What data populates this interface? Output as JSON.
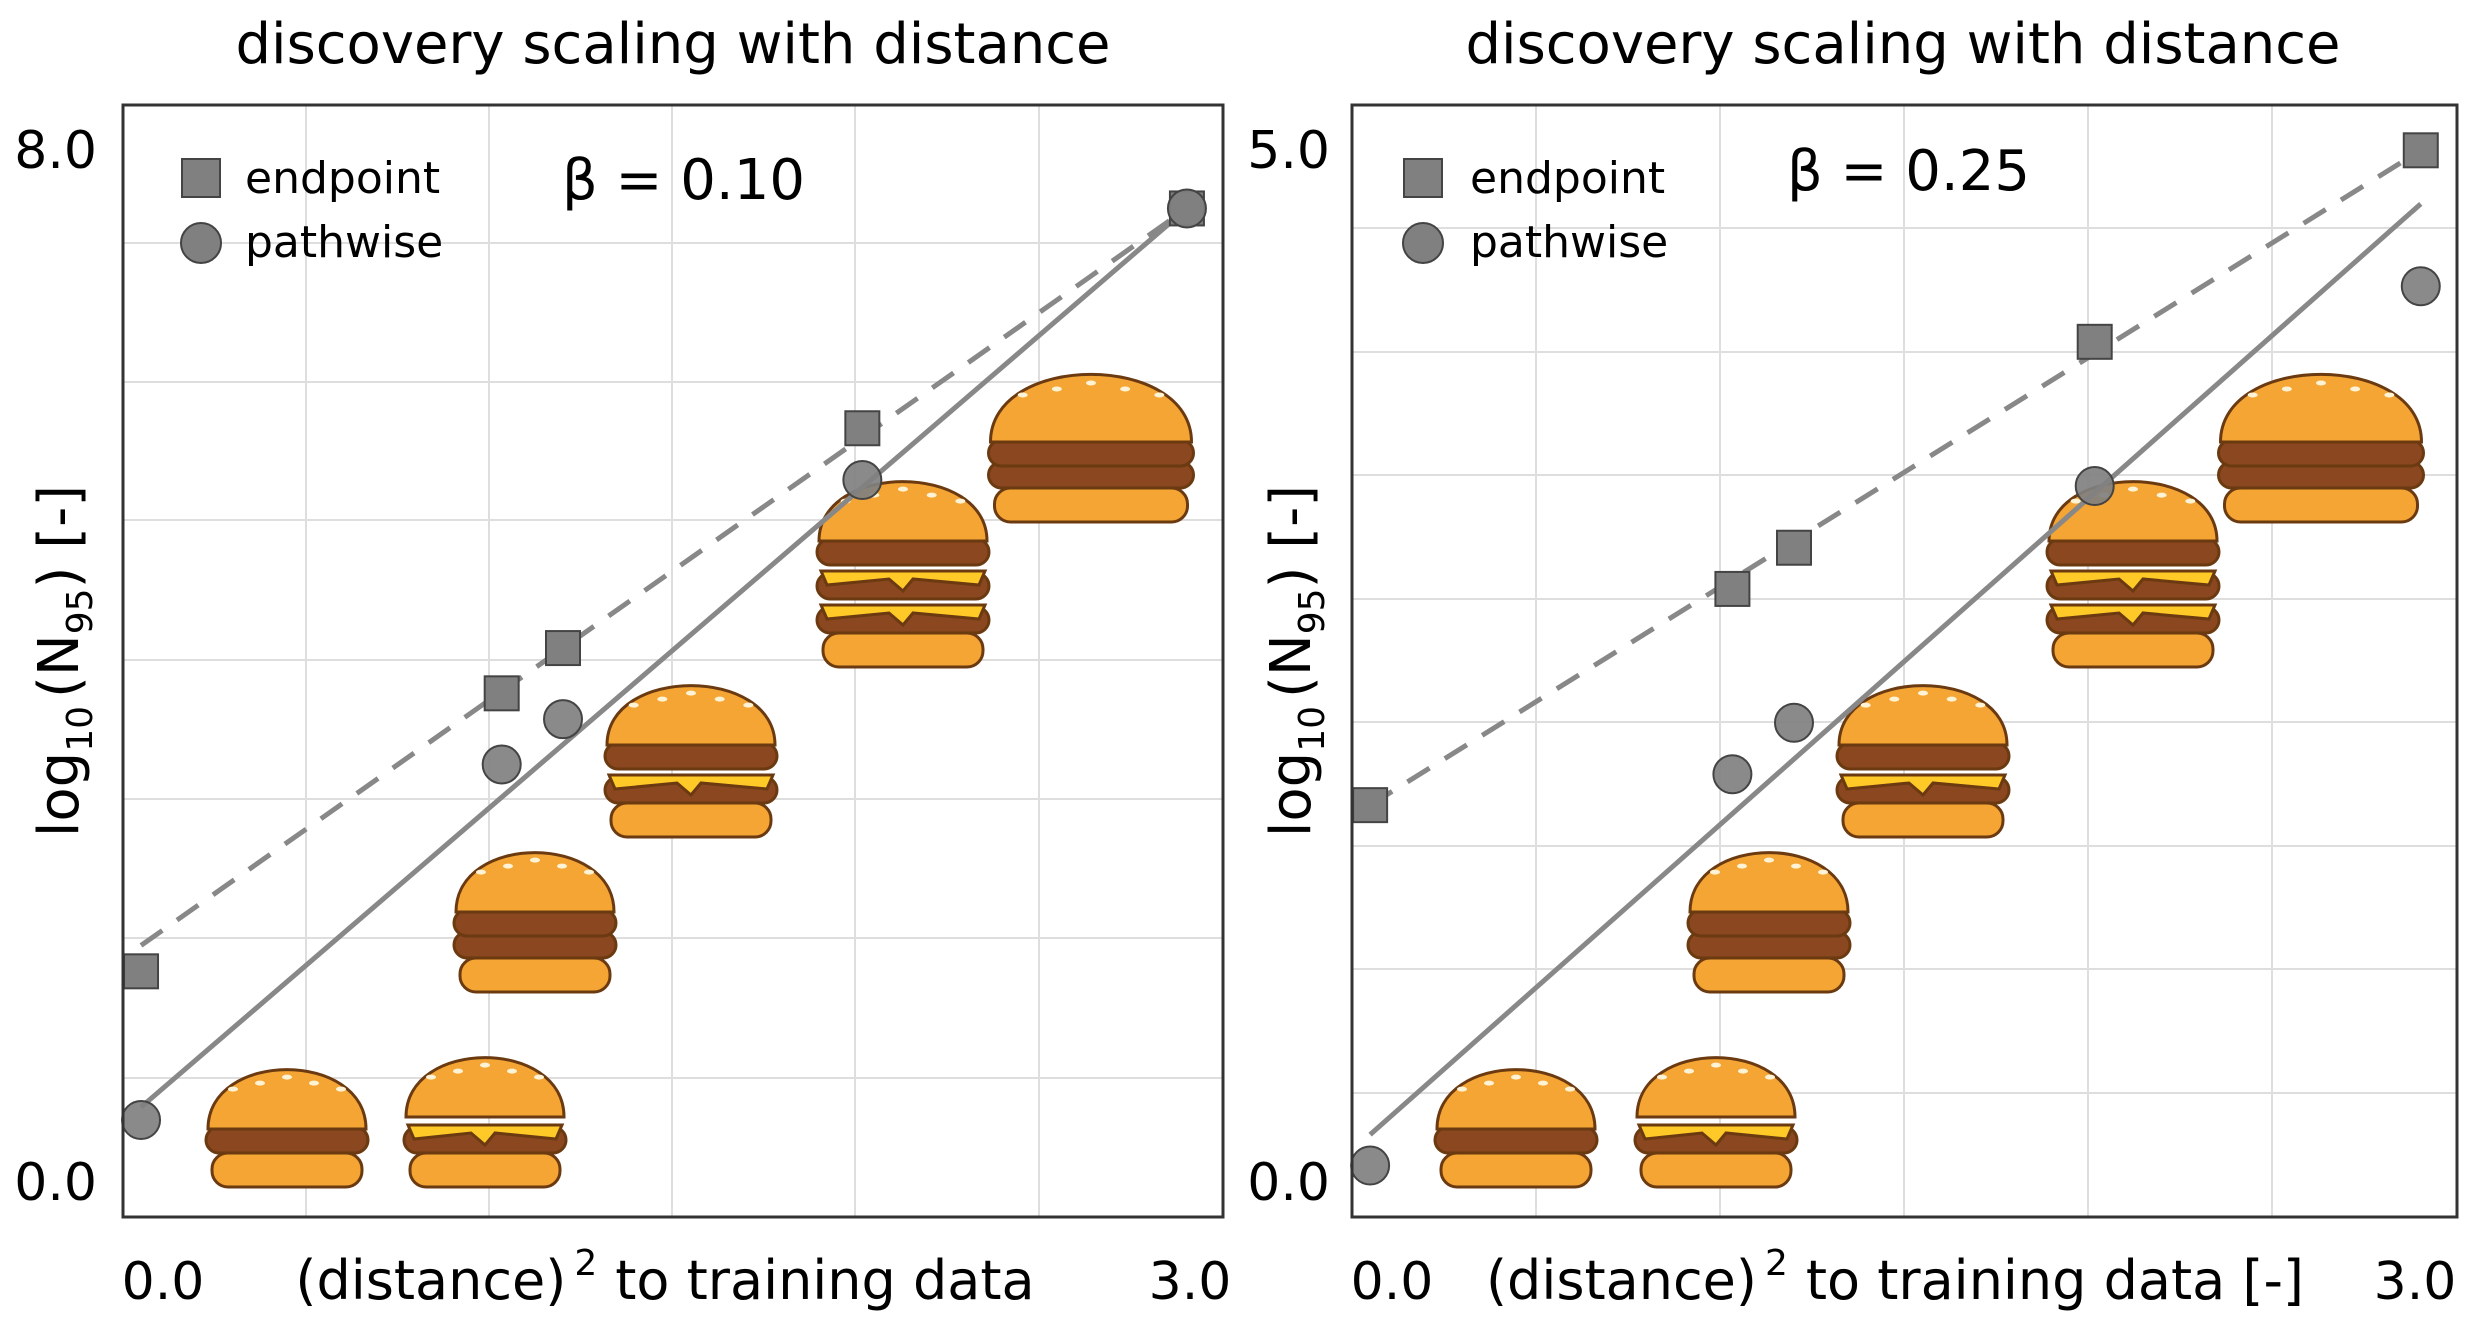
{
  "chart_data": [
    {
      "type": "scatter",
      "title": "discovery scaling with distance",
      "xlabel_prefix": "(distance)",
      "xlabel_sup": "2",
      "xlabel_suffix": "to training data",
      "ylabel_pre": "log",
      "ylabel_sub": "10",
      "ylabel_mid": "(N",
      "ylabel_sub2": "95",
      "ylabel_post": ") [-]",
      "x_tick_labels": [
        "0.0",
        "3.0"
      ],
      "y_tick_labels": [
        "0.0",
        "8.0"
      ],
      "xlim": [
        -0.05,
        3.0
      ],
      "ylim": [
        -0.3,
        8.3
      ],
      "grid": true,
      "legend_placement": "top-left",
      "annotation": "β = 0.10",
      "series": [
        {
          "name": "endpoint",
          "marker": "square",
          "x": [
            0.0,
            1.0,
            1.17,
            2.0,
            2.9
          ],
          "y": [
            1.6,
            3.75,
            4.1,
            5.8,
            7.5
          ],
          "fit": "dashed",
          "fit_line": [
            [
              0.0,
              1.8
            ],
            [
              2.9,
              7.5
            ]
          ]
        },
        {
          "name": "pathwise",
          "marker": "circle",
          "x": [
            0.0,
            1.0,
            1.17,
            2.0,
            2.9
          ],
          "y": [
            0.45,
            3.2,
            3.55,
            5.4,
            7.5
          ],
          "fit": "solid",
          "fit_line": [
            [
              0.0,
              0.55
            ],
            [
              2.9,
              7.5
            ]
          ]
        }
      ],
      "colors": {
        "marker": "#808080",
        "line": "#888888"
      }
    },
    {
      "type": "scatter",
      "title": "discovery scaling with distance",
      "xlabel_prefix": "(distance)",
      "xlabel_sup": "2",
      "xlabel_suffix": "to training data  [-]",
      "ylabel_pre": "log",
      "ylabel_sub": "10",
      "ylabel_mid": "(N",
      "ylabel_sub2": "95",
      "ylabel_post": ") [-]",
      "x_tick_labels": [
        "0.0",
        "3.0"
      ],
      "y_tick_labels": [
        "0.0",
        "5.0"
      ],
      "xlim": [
        -0.05,
        3.0
      ],
      "ylim": [
        -0.2,
        5.2
      ],
      "grid": true,
      "legend_placement": "top-left",
      "annotation": "β = 0.25",
      "series": [
        {
          "name": "endpoint",
          "marker": "square",
          "x": [
            0.0,
            1.0,
            1.17,
            2.0,
            2.9
          ],
          "y": [
            1.8,
            2.85,
            3.05,
            4.05,
            4.98
          ],
          "fit": "dashed",
          "fit_line": [
            [
              0.0,
              1.8
            ],
            [
              2.9,
              4.98
            ]
          ]
        },
        {
          "name": "pathwise",
          "marker": "circle",
          "x": [
            0.0,
            1.0,
            1.17,
            2.0,
            2.9
          ],
          "y": [
            0.05,
            1.95,
            2.2,
            3.35,
            4.32
          ],
          "fit": "solid",
          "fit_line": [
            [
              0.0,
              0.2
            ],
            [
              2.9,
              4.72
            ]
          ]
        }
      ],
      "colors": {
        "marker": "#808080",
        "line": "#888888"
      }
    }
  ],
  "burger_icons": [
    "burger-plain-icon",
    "cheeseburger-icon",
    "double-burger-icon",
    "double-cheeseburger-with-lettuce-icon",
    "triple-cheeseburger-icon",
    "big-double-burger-icon"
  ],
  "burger_colors": {
    "bun": "#f4a534",
    "bun_dark": "#d97a10",
    "patty": "#8a4720",
    "cheese": "#ffc928",
    "outline": "#6b3a10"
  }
}
